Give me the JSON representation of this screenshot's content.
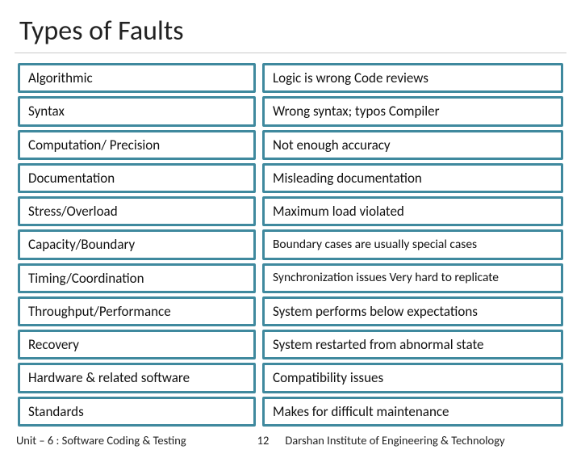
{
  "title": "Types of Faults",
  "border_color": "#3f899e",
  "cell_bg": "#ffffff",
  "rows": [
    {
      "left": "Algorithmic",
      "right": "Logic is wrong Code reviews"
    },
    {
      "left": "Syntax",
      "right": "Wrong syntax; typos Compiler"
    },
    {
      "left": "Computation/ Precision",
      "right": "Not enough accuracy"
    },
    {
      "left": "Documentation",
      "right": "Misleading documentation"
    },
    {
      "left": "Stress/Overload",
      "right": "Maximum load violated"
    },
    {
      "left": "Capacity/Boundary",
      "right": "Boundary cases are usually special cases",
      "right_small": true
    },
    {
      "left": "Timing/Coordination",
      "right": "Synchronization issues Very hard to replicate",
      "right_small": true
    },
    {
      "left": "Throughput/Performance",
      "right": "System performs below expectations"
    },
    {
      "left": "Recovery",
      "right": "System restarted from abnormal state"
    },
    {
      "left": "Hardware & related software",
      "right": "Compatibility issues"
    },
    {
      "left": "Standards",
      "right": "Makes for difficult maintenance"
    }
  ],
  "footer": {
    "unit": "Unit – 6 : Software Coding & Testing",
    "page_number": "12",
    "institute": "Darshan Institute of Engineering & Technology"
  }
}
